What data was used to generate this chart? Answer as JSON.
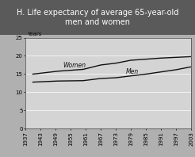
{
  "title": "H. Life expectancy of average 65-year-old\nmen and women",
  "ylabel": "Years",
  "xlim": [
    1937,
    2003
  ],
  "ylim": [
    0,
    25
  ],
  "yticks": [
    0,
    5,
    10,
    15,
    20,
    25
  ],
  "xticks": [
    1937,
    1943,
    1949,
    1955,
    1961,
    1967,
    1973,
    1979,
    1985,
    1991,
    1997,
    2003
  ],
  "women_x": [
    1940,
    1950,
    1960,
    1967,
    1973,
    1979,
    1985,
    1991,
    1997,
    2003
  ],
  "women_y": [
    15.0,
    15.8,
    16.3,
    17.5,
    18.0,
    18.8,
    19.1,
    19.4,
    19.6,
    19.8
  ],
  "men_x": [
    1940,
    1950,
    1960,
    1967,
    1973,
    1979,
    1985,
    1991,
    1997,
    2003
  ],
  "men_y": [
    12.8,
    13.1,
    13.2,
    13.8,
    14.0,
    14.5,
    15.0,
    15.6,
    16.2,
    17.0
  ],
  "women_label": "Women",
  "men_label": "Men",
  "line_color": "#111111",
  "plot_bg_color": "#d4d4d4",
  "title_bg_color": "#5a5a5a",
  "title_text_color": "#ffffff",
  "outer_bg_color": "#b0b0b0",
  "title_fontsize": 7.0,
  "axis_fontsize": 5.0,
  "label_fontsize": 5.5,
  "ylabel_fontsize": 5.0
}
